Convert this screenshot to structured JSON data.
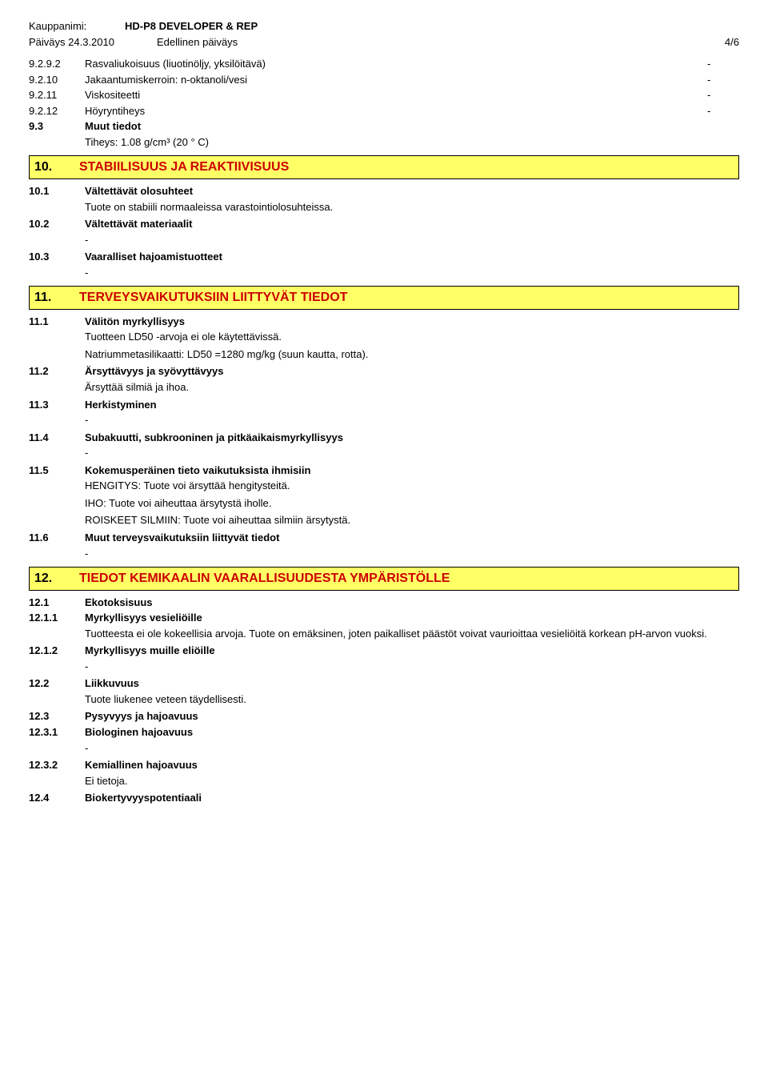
{
  "header": {
    "label": "Kauppanimi:",
    "value": "HD-P8 DEVELOPER  & REP"
  },
  "dateline": {
    "left": "Päiväys 24.3.2010",
    "mid": "Edellinen päiväys",
    "right": "4/6"
  },
  "rows1": [
    {
      "num": "9.2.9.2",
      "label": "Rasvaliukoisuus (liuotinöljy, yksilöitävä)",
      "val": "-"
    },
    {
      "num": "9.2.10",
      "label": "Jakaantumiskerroin: n-oktanoli/vesi",
      "val": "-"
    },
    {
      "num": "9.2.11",
      "label": "Viskositeetti",
      "val": "-"
    },
    {
      "num": "9.2.12",
      "label": "Höyryntiheys",
      "val": "-"
    }
  ],
  "r93": {
    "num": "9.3",
    "label": "Muut tiedot",
    "body": "Tiheys: 1.08 g/cm³ (20 ° C)"
  },
  "s10": {
    "num": "10.",
    "title": "STABIILISUUS JA REAKTIIVISUUS"
  },
  "r101": {
    "num": "10.1",
    "label": "Vältettävät olosuhteet",
    "body": "Tuote on stabiili normaaleissa varastointiolosuhteissa."
  },
  "r102": {
    "num": "10.2",
    "label": "Vältettävät materiaalit",
    "body": "-"
  },
  "r103": {
    "num": "10.3",
    "label": "Vaaralliset hajoamistuotteet",
    "body": "-"
  },
  "s11": {
    "num": "11.",
    "title": "TERVEYSVAIKUTUKSIIN LIITTYVÄT TIEDOT"
  },
  "r111": {
    "num": "11.1",
    "label": "Välitön myrkyllisyys",
    "body1": "Tuotteen LD50 -arvoja ei ole käytettävissä.",
    "body2": "Natriummetasilikaatti: LD50 =1280 mg/kg (suun kautta, rotta)."
  },
  "r112": {
    "num": "11.2",
    "label": "Ärsyttävyys ja syövyttävyys",
    "body": "Ärsyttää silmiä ja ihoa."
  },
  "r113": {
    "num": "11.3",
    "label": "Herkistyminen",
    "body": "-"
  },
  "r114": {
    "num": "11.4",
    "label": "Subakuutti, subkrooninen ja pitkäaikaismyrkyllisyys",
    "body": "-"
  },
  "r115": {
    "num": "11.5",
    "label": "Kokemusperäinen tieto vaikutuksista ihmisiin",
    "body1": "HENGITYS: Tuote voi ärsyttää hengitysteitä.",
    "body2": "IHO: Tuote voi aiheuttaa ärsytystä iholle.",
    "body3": "ROISKEET SILMIIN: Tuote voi aiheuttaa silmiin ärsytystä."
  },
  "r116": {
    "num": "11.6",
    "label": "Muut terveysvaikutuksiin liittyvät tiedot",
    "body": "-"
  },
  "s12": {
    "num": "12.",
    "title": "TIEDOT KEMIKAALIN VAARALLISUUDESTA YMPÄRISTÖLLE"
  },
  "r121": {
    "num": "12.1",
    "label": "Ekotoksisuus"
  },
  "r1211": {
    "num": "12.1.1",
    "label": "Myrkyllisyys vesieliöille",
    "body": "Tuotteesta ei ole kokeellisia arvoja. Tuote on emäksinen, joten paikalliset päästöt voivat vaurioittaa vesieliöitä korkean pH-arvon vuoksi."
  },
  "r1212": {
    "num": "12.1.2",
    "label": "Myrkyllisyys muille eliöille",
    "body": "-"
  },
  "r122": {
    "num": "12.2",
    "label": "Liikkuvuus",
    "body": "Tuote liukenee veteen täydellisesti."
  },
  "r123": {
    "num": "12.3",
    "label": "Pysyvyys ja hajoavuus"
  },
  "r1231": {
    "num": "12.3.1",
    "label": "Biologinen hajoavuus",
    "body": "-"
  },
  "r1232": {
    "num": "12.3.2",
    "label": "Kemiallinen hajoavuus",
    "body": "Ei tietoja."
  },
  "r124": {
    "num": "12.4",
    "label": "Biokertyvyyspotentiaali"
  }
}
